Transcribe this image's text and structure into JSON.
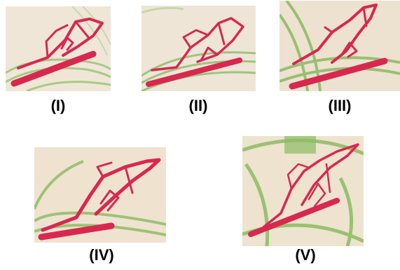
{
  "panels": [
    {
      "label": "(I)"
    },
    {
      "label": "(II)"
    },
    {
      "label": "(III)"
    },
    {
      "label": "(IV)"
    },
    {
      "label": "(V)"
    }
  ],
  "colors": {
    "paper": "#f1e4d3",
    "postmark_green": "#8fbf6a",
    "ink_red": "#d8284f"
  }
}
